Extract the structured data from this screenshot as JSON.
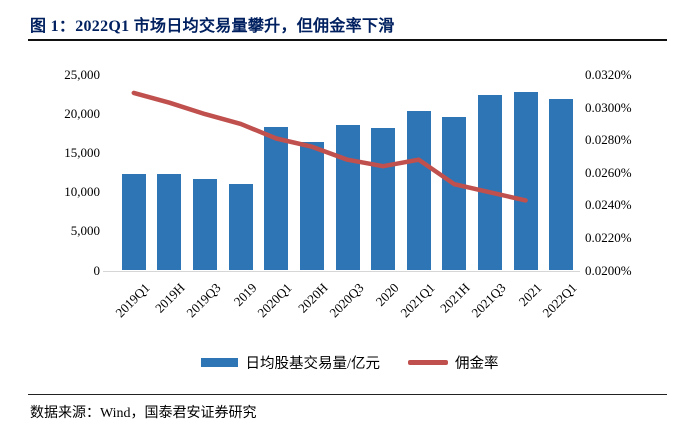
{
  "figure": {
    "title": "图 1：2022Q1 市场日均交易量攀升，但佣金率下滑",
    "source": "数据来源：Wind，国泰君安证券研究"
  },
  "legend": {
    "bar_label": "日均股基交易量/亿元",
    "line_label": "佣金率"
  },
  "colors": {
    "bar": "#2e75b6",
    "line": "#c0504d",
    "title_text": "#002060",
    "axis_baseline": "#d6d6d6",
    "body_text": "#000000"
  },
  "chart_data": {
    "type": "bar",
    "subtype": "combo-bar-line",
    "categories": [
      "2019Q1",
      "2019H",
      "2019Q3",
      "2019",
      "2020Q1",
      "2020H",
      "2020Q3",
      "2020",
      "2021Q1",
      "2021H",
      "2021Q3",
      "2021",
      "2022Q1"
    ],
    "series": [
      {
        "name": "日均股基交易量/亿元",
        "type": "bar",
        "axis": "left",
        "values": [
          12300,
          12400,
          11700,
          11100,
          18400,
          16400,
          18600,
          18200,
          20400,
          19600,
          22500,
          22800,
          21900
        ]
      },
      {
        "name": "佣金率",
        "type": "line",
        "axis": "right",
        "unit": "%",
        "values": [
          0.0309,
          0.0303,
          0.0296,
          0.029,
          0.0281,
          0.0276,
          0.0268,
          0.0264,
          0.0268,
          0.0253,
          0.0248,
          0.0243,
          null
        ]
      }
    ],
    "left_axis": {
      "min": 0,
      "max": 25000,
      "step": 5000,
      "tick_labels": [
        "0",
        "5,000",
        "10,000",
        "15,000",
        "20,000",
        "25,000"
      ]
    },
    "right_axis": {
      "min": 0.02,
      "max": 0.032,
      "step": 0.002,
      "tick_labels": [
        "0.0200%",
        "0.0220%",
        "0.0240%",
        "0.0260%",
        "0.0280%",
        "0.0300%",
        "0.0320%"
      ]
    },
    "grid": false,
    "legend_position": "bottom"
  }
}
